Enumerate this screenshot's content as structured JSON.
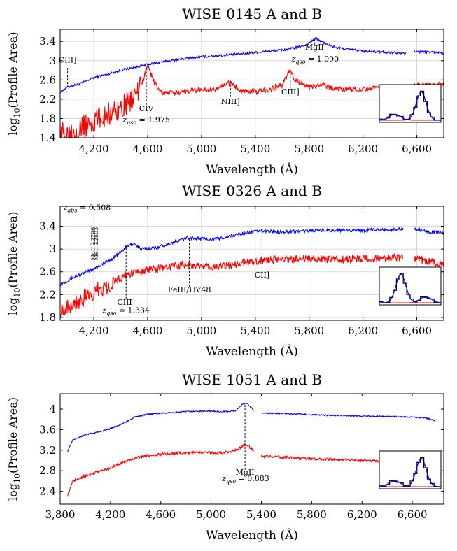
{
  "chart_data": [
    {
      "type": "line",
      "title": "WISE 0145 A and B",
      "xlabel": "Wavelength (Å)",
      "ylabel": "log10(Profile Area)",
      "xlim": [
        3950,
        6800
      ],
      "ylim": [
        1.4,
        3.65
      ],
      "xticks": [
        4200,
        4600,
        5000,
        5400,
        5800,
        6200,
        6600
      ],
      "xtick_labels": [
        "4,200",
        "4,600",
        "5,000",
        "5,400",
        "5,800",
        "6,200",
        "6,600"
      ],
      "yticks": [
        1.4,
        1.8,
        2.2,
        2.6,
        3.0,
        3.4
      ],
      "ytick_labels": [
        "1.4",
        "1.8",
        "2.2",
        "2.6",
        "3",
        "3.4"
      ],
      "grid": true,
      "gap": [
        6520,
        6580
      ],
      "series": [
        {
          "color": "#0000ff",
          "noise": 0.025,
          "points": [
            [
              3950,
              2.35
            ],
            [
              4000,
              2.45
            ],
            [
              4100,
              2.52
            ],
            [
              4200,
              2.65
            ],
            [
              4300,
              2.72
            ],
            [
              4400,
              2.8
            ],
            [
              4500,
              2.86
            ],
            [
              4600,
              2.92
            ],
            [
              4700,
              2.97
            ],
            [
              4800,
              3.01
            ],
            [
              4900,
              3.05
            ],
            [
              5000,
              3.08
            ],
            [
              5200,
              3.12
            ],
            [
              5400,
              3.17
            ],
            [
              5600,
              3.22
            ],
            [
              5700,
              3.27
            ],
            [
              5780,
              3.33
            ],
            [
              5850,
              3.47
            ],
            [
              5920,
              3.35
            ],
            [
              6000,
              3.27
            ],
            [
              6200,
              3.2
            ],
            [
              6400,
              3.17
            ],
            [
              6520,
              3.16
            ],
            [
              6580,
              3.19
            ],
            [
              6700,
              3.18
            ],
            [
              6800,
              3.16
            ]
          ]
        },
        {
          "color": "#ff0000",
          "noise": 0.06,
          "noise_low": 0.25,
          "noise_low_until": 4550,
          "points": [
            [
              3950,
              1.45
            ],
            [
              4050,
              1.55
            ],
            [
              4150,
              1.65
            ],
            [
              4250,
              1.8
            ],
            [
              4350,
              1.95
            ],
            [
              4450,
              2.1
            ],
            [
              4550,
              2.45
            ],
            [
              4600,
              2.9
            ],
            [
              4650,
              2.55
            ],
            [
              4700,
              2.35
            ],
            [
              4800,
              2.32
            ],
            [
              4900,
              2.38
            ],
            [
              5000,
              2.4
            ],
            [
              5100,
              2.38
            ],
            [
              5200,
              2.55
            ],
            [
              5300,
              2.38
            ],
            [
              5400,
              2.35
            ],
            [
              5500,
              2.4
            ],
            [
              5600,
              2.5
            ],
            [
              5650,
              2.78
            ],
            [
              5700,
              2.6
            ],
            [
              5800,
              2.45
            ],
            [
              5900,
              2.5
            ],
            [
              6000,
              2.42
            ],
            [
              6100,
              2.4
            ],
            [
              6200,
              2.42
            ],
            [
              6350,
              2.44
            ],
            [
              6520,
              2.42
            ],
            [
              6580,
              2.48
            ],
            [
              6700,
              2.5
            ],
            [
              6800,
              2.5
            ]
          ]
        }
      ],
      "annotations": [
        {
          "text": "CIII]",
          "x": 4005,
          "y": 2.96,
          "line_from": 2.85,
          "line_to": 2.5
        },
        {
          "text": "CIV",
          "x": 4590,
          "y": 1.95,
          "line_from": 2.85,
          "line_to": 2.05
        },
        {
          "text": "zqso = 1.975",
          "math": true,
          "x": 4590,
          "y": 1.72
        },
        {
          "text": "NIII]",
          "x": 5215,
          "y": 2.1,
          "line_from": 2.58,
          "line_to": 2.2
        },
        {
          "text": "CIII]",
          "x": 5660,
          "y": 2.3,
          "line_from": 2.75,
          "line_to": 2.4
        },
        {
          "text": "MgII",
          "x": 5840,
          "y": 3.23,
          "line_from": 3.45,
          "line_to": 3.33
        },
        {
          "text": "zqso = 1.090",
          "math": true,
          "x": 5845,
          "y": 2.98
        }
      ],
      "inset": {
        "peak": "right"
      }
    },
    {
      "type": "line",
      "title": "WISE 0326 A and B",
      "xlabel": "Wavelength (Å)",
      "ylabel": "log10(Profile Area)",
      "xlim": [
        3950,
        6800
      ],
      "ylim": [
        1.75,
        3.75
      ],
      "xticks": [
        4200,
        4600,
        5000,
        5400,
        5800,
        6200,
        6600
      ],
      "xtick_labels": [
        "4,200",
        "4,600",
        "5,000",
        "5,400",
        "5,800",
        "6,200",
        "6,600"
      ],
      "yticks": [
        1.8,
        2.2,
        2.6,
        3.0,
        3.4
      ],
      "ytick_labels": [
        "1.8",
        "2.2",
        "2.6",
        "3",
        "3.4"
      ],
      "grid": true,
      "gap": [
        6500,
        6580
      ],
      "series": [
        {
          "color": "#0000ff",
          "noise": 0.03,
          "points": [
            [
              3950,
              2.38
            ],
            [
              4050,
              2.5
            ],
            [
              4150,
              2.6
            ],
            [
              4250,
              2.72
            ],
            [
              4350,
              2.85
            ],
            [
              4450,
              3.05
            ],
            [
              4500,
              3.1
            ],
            [
              4550,
              3.0
            ],
            [
              4650,
              3.02
            ],
            [
              4800,
              3.12
            ],
            [
              4900,
              3.2
            ],
            [
              5000,
              3.18
            ],
            [
              5100,
              3.17
            ],
            [
              5200,
              3.22
            ],
            [
              5300,
              3.27
            ],
            [
              5450,
              3.32
            ],
            [
              5600,
              3.3
            ],
            [
              5800,
              3.32
            ],
            [
              6000,
              3.33
            ],
            [
              6200,
              3.33
            ],
            [
              6400,
              3.34
            ],
            [
              6500,
              3.36
            ],
            [
              6580,
              3.35
            ],
            [
              6700,
              3.3
            ],
            [
              6800,
              3.28
            ]
          ]
        },
        {
          "color": "#ff0000",
          "noise": 0.07,
          "noise_low": 0.16,
          "noise_low_until": 4350,
          "points": [
            [
              3950,
              1.95
            ],
            [
              4050,
              2.05
            ],
            [
              4150,
              2.15
            ],
            [
              4250,
              2.3
            ],
            [
              4350,
              2.42
            ],
            [
              4450,
              2.55
            ],
            [
              4550,
              2.62
            ],
            [
              4650,
              2.65
            ],
            [
              4750,
              2.68
            ],
            [
              4850,
              2.72
            ],
            [
              4950,
              2.7
            ],
            [
              5100,
              2.68
            ],
            [
              5200,
              2.72
            ],
            [
              5300,
              2.75
            ],
            [
              5450,
              2.8
            ],
            [
              5600,
              2.82
            ],
            [
              5800,
              2.82
            ],
            [
              6000,
              2.82
            ],
            [
              6200,
              2.83
            ],
            [
              6400,
              2.84
            ],
            [
              6500,
              2.85
            ],
            [
              6580,
              2.85
            ],
            [
              6700,
              2.78
            ],
            [
              6800,
              2.72
            ]
          ]
        }
      ],
      "annotations": [
        {
          "text": "zabs = 0.508",
          "math_abs": true,
          "x": 4150,
          "y": 3.68
        },
        {
          "text": "MgII λ2796",
          "vertical": true,
          "x": 4210,
          "y": 2.8
        },
        {
          "text": "MgII λ2803",
          "vertical": true,
          "x": 4230,
          "y": 2.8
        },
        {
          "text": "CIII]",
          "x": 4440,
          "y": 2.02,
          "line_from": 3.02,
          "line_to": 2.12
        },
        {
          "text": "zqso = 1.334",
          "math": true,
          "x": 4440,
          "y": 1.88
        },
        {
          "text": "FeIII/UV48",
          "x": 4910,
          "y": 2.24,
          "line_from": 3.17,
          "line_to": 2.34
        },
        {
          "text": "CII]",
          "x": 5450,
          "y": 2.5,
          "line_from": 3.3,
          "line_to": 2.6
        }
      ],
      "inset": {
        "peak": "left"
      }
    },
    {
      "type": "line",
      "title": "WISE 1051 A and B",
      "xlabel": "Wavelength (Å)",
      "ylabel": "log10(Profile Area)",
      "xlim": [
        3800,
        6850
      ],
      "ylim": [
        2.15,
        4.3
      ],
      "xticks": [
        3800,
        4200,
        4600,
        5000,
        5400,
        5800,
        6200,
        6600
      ],
      "xtick_labels": [
        "3,800",
        "4,200",
        "4,600",
        "5,000",
        "5,400",
        "5,800",
        "6,200",
        "6,600"
      ],
      "yticks": [
        2.4,
        2.8,
        3.2,
        3.6,
        4.0
      ],
      "ytick_labels": [
        "2.4",
        "2.8",
        "3.2",
        "3.6",
        "4"
      ],
      "grid": false,
      "gap": [
        5340,
        5400
      ],
      "series": [
        {
          "color": "#0000ff",
          "noise": 0.012,
          "points": [
            [
              3860,
              3.18
            ],
            [
              3900,
              3.4
            ],
            [
              4000,
              3.5
            ],
            [
              4100,
              3.55
            ],
            [
              4200,
              3.62
            ],
            [
              4300,
              3.72
            ],
            [
              4400,
              3.85
            ],
            [
              4500,
              3.9
            ],
            [
              4600,
              3.92
            ],
            [
              4700,
              3.93
            ],
            [
              4800,
              3.95
            ],
            [
              4900,
              3.96
            ],
            [
              5000,
              3.96
            ],
            [
              5100,
              3.95
            ],
            [
              5200,
              3.97
            ],
            [
              5250,
              4.1
            ],
            [
              5290,
              4.1
            ],
            [
              5340,
              3.98
            ],
            [
              5400,
              3.92
            ],
            [
              5500,
              3.92
            ],
            [
              5700,
              3.9
            ],
            [
              5900,
              3.88
            ],
            [
              6100,
              3.87
            ],
            [
              6300,
              3.86
            ],
            [
              6500,
              3.85
            ],
            [
              6700,
              3.83
            ],
            [
              6780,
              3.78
            ]
          ]
        },
        {
          "color": "#ff0000",
          "noise": 0.025,
          "points": [
            [
              3860,
              2.32
            ],
            [
              3900,
              2.6
            ],
            [
              4000,
              2.7
            ],
            [
              4100,
              2.78
            ],
            [
              4200,
              2.85
            ],
            [
              4300,
              2.97
            ],
            [
              4400,
              3.05
            ],
            [
              4500,
              3.1
            ],
            [
              4600,
              3.12
            ],
            [
              4700,
              3.14
            ],
            [
              4800,
              3.15
            ],
            [
              4900,
              3.16
            ],
            [
              5000,
              3.15
            ],
            [
              5100,
              3.15
            ],
            [
              5200,
              3.2
            ],
            [
              5260,
              3.3
            ],
            [
              5300,
              3.28
            ],
            [
              5340,
              3.18
            ],
            [
              5400,
              3.08
            ],
            [
              5600,
              3.06
            ],
            [
              5800,
              3.03
            ],
            [
              6000,
              3.02
            ],
            [
              6200,
              3.0
            ],
            [
              6400,
              2.98
            ],
            [
              6600,
              2.96
            ],
            [
              6780,
              2.95
            ]
          ]
        }
      ],
      "annotations": [
        {
          "text": "MgII",
          "x": 5270,
          "y": 2.72,
          "line_from": 4.08,
          "line_to": 2.82
        },
        {
          "text": "zqso = 0.883",
          "math": true,
          "x": 5275,
          "y": 2.6
        }
      ],
      "inset": {
        "peak": "right"
      }
    }
  ]
}
